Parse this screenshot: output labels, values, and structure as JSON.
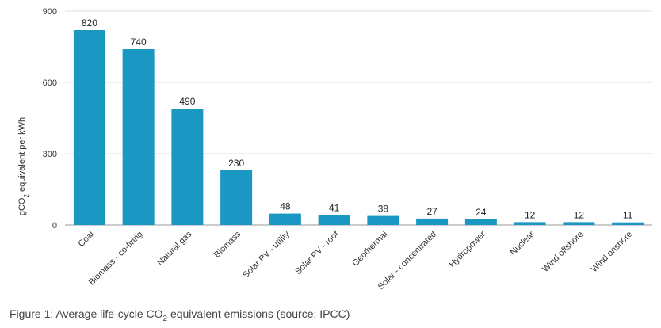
{
  "chart_data": {
    "type": "bar",
    "categories": [
      "Coal",
      "Biomass - co-firing",
      "Natural gas",
      "Biomass",
      "Solar PV - utility",
      "Solar PV - roof",
      "Geothermal",
      "Solar - concentrated",
      "Hydropower",
      "Nuclear",
      "Wind offshore",
      "Wind onshore"
    ],
    "values": [
      820,
      740,
      490,
      230,
      48,
      41,
      38,
      27,
      24,
      12,
      12,
      11
    ],
    "data_labels": [
      "820",
      "740",
      "490",
      "230",
      "48",
      "41",
      "38",
      "27",
      "24",
      "12",
      "12",
      "11"
    ],
    "ylabel": "gCO2 equivalent per kWh",
    "ylabel_parts": {
      "pre": "gCO",
      "sub": "2",
      "post": " equivalent per kWh"
    },
    "yticks": [
      0,
      300,
      600,
      900
    ],
    "ylim": [
      0,
      900
    ],
    "grid": true,
    "bar_color": "#1a97c3"
  },
  "caption": {
    "pre": "Figure 1: Average life-cycle CO",
    "sub": "2",
    "post": " equivalent emissions (source: IPCC)"
  }
}
